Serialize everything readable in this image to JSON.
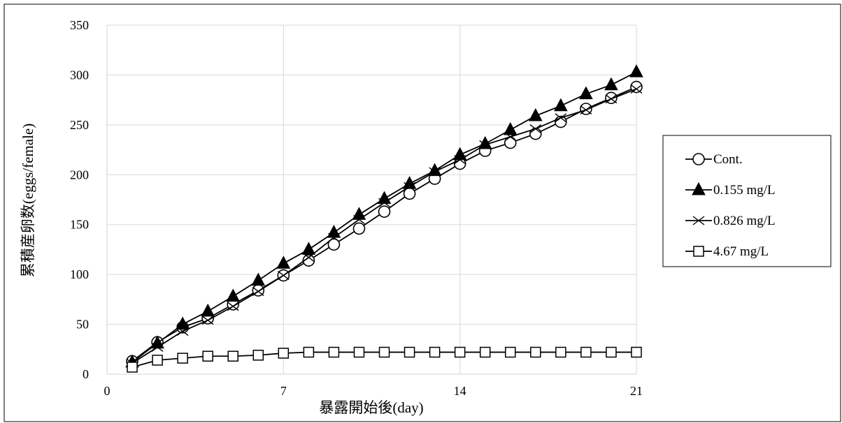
{
  "chart_data": {
    "type": "line",
    "title": "",
    "xlabel": "暴露開始後(day)",
    "ylabel": "累積産卵数(eggs/female)",
    "xlim": [
      0,
      21
    ],
    "ylim": [
      0,
      350
    ],
    "xticks": [
      0,
      7,
      14,
      21
    ],
    "yticks": [
      0,
      50,
      100,
      150,
      200,
      250,
      300,
      350
    ],
    "grid": true,
    "legend_position": "right",
    "x": [
      1,
      2,
      3,
      4,
      5,
      6,
      7,
      8,
      9,
      10,
      11,
      12,
      13,
      14,
      15,
      16,
      17,
      18,
      19,
      20,
      21
    ],
    "series": [
      {
        "name": "Cont.",
        "marker": "open-circle",
        "values": [
          13,
          32,
          47,
          56,
          70,
          84,
          99,
          114,
          130,
          146,
          163,
          181,
          196,
          211,
          224,
          232,
          241,
          253,
          266,
          277,
          288
        ]
      },
      {
        "name": "0.155 mg/L",
        "marker": "filled-triangle",
        "values": [
          12,
          31,
          50,
          63,
          78,
          94,
          111,
          125,
          142,
          160,
          176,
          191,
          204,
          220,
          231,
          245,
          259,
          269,
          281,
          290,
          303
        ]
      },
      {
        "name": "0.826 mg/L",
        "marker": "x",
        "values": [
          11,
          27,
          43,
          54,
          68,
          83,
          99,
          117,
          137,
          155,
          172,
          188,
          203,
          215,
          230,
          238,
          246,
          257,
          265,
          276,
          286
        ]
      },
      {
        "name": "4.67 mg/L",
        "marker": "open-square",
        "values": [
          7,
          14,
          16,
          18,
          18,
          19,
          21,
          22,
          22,
          22,
          22,
          22,
          22,
          22,
          22,
          22,
          22,
          22,
          22,
          22,
          22
        ]
      }
    ]
  },
  "colors": {
    "line": "#000000",
    "grid": "#d9d9d9",
    "border": "#000000"
  }
}
